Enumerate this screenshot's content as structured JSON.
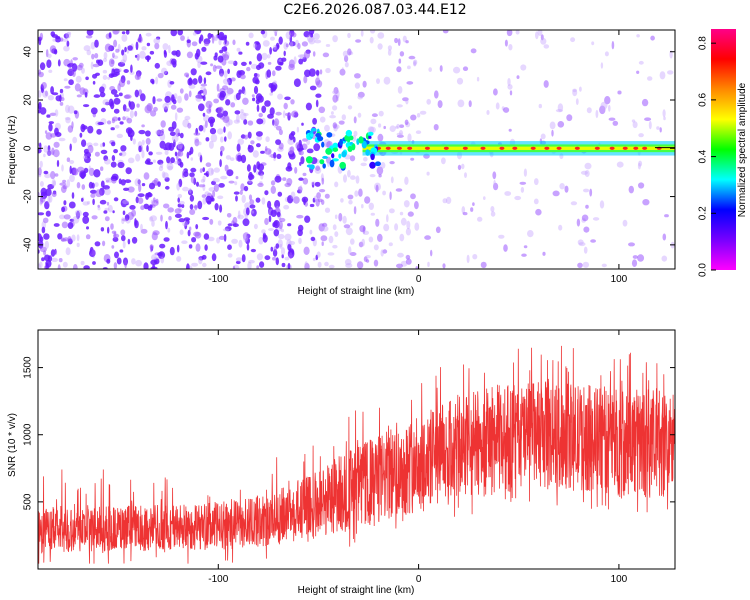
{
  "title": "C2E6.2026.087.03.44.E12",
  "chart_data": [
    {
      "type": "heatmap",
      "xlabel": "Height of straight line (km)",
      "ylabel": "Frequency (Hz)",
      "xlim": [
        -190,
        128
      ],
      "ylim": [
        -50,
        49
      ],
      "xticks": [
        -100,
        0,
        100
      ],
      "yticks": [
        -40,
        -20,
        0,
        20,
        40
      ],
      "colorbar": {
        "label": "Normalized spectral amplitude",
        "range": [
          0.0,
          0.85
        ],
        "ticks": [
          0.0,
          0.2,
          0.4,
          0.6,
          0.8
        ],
        "colormap": [
          "#ff00ff",
          "#7700ff",
          "#0000ff",
          "#00ffff",
          "#00ff00",
          "#ffff00",
          "#ff8800",
          "#ff0000",
          "#ff0088"
        ]
      },
      "features": {
        "tone_frequency_hz": 0,
        "tone_start_km": -55,
        "noise_floor_color": "#7a2cff"
      }
    },
    {
      "type": "line",
      "xlabel": "Height of straight line (km)",
      "ylabel": "SNR (10 * v/v)",
      "xlim": [
        -190,
        128
      ],
      "ylim": [
        0,
        1780
      ],
      "xticks": [
        -100,
        0,
        100
      ],
      "yticks": [
        500,
        1000,
        1500
      ],
      "color": "#ee3333",
      "envelope": {
        "x": [
          -190,
          -150,
          -100,
          -75,
          -55,
          -40,
          -20,
          0,
          20,
          40,
          60,
          80,
          100,
          128
        ],
        "y_low": [
          120,
          130,
          140,
          170,
          220,
          260,
          330,
          430,
          500,
          560,
          600,
          580,
          540,
          520
        ],
        "y_high": [
          460,
          470,
          500,
          560,
          700,
          860,
          1000,
          1150,
          1300,
          1380,
          1400,
          1380,
          1360,
          1340
        ]
      }
    }
  ]
}
